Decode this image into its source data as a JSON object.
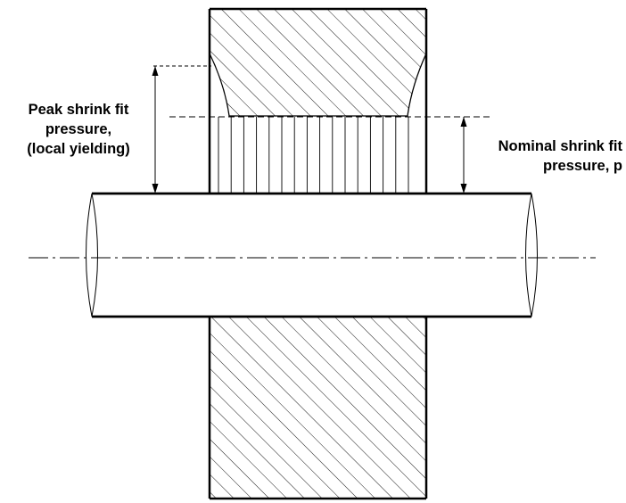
{
  "labels": {
    "peak": [
      "Peak shrink fit",
      "pressure,",
      "(local yielding)"
    ],
    "nominal": [
      "Nominal shrink fit",
      "pressure, p"
    ]
  }
}
